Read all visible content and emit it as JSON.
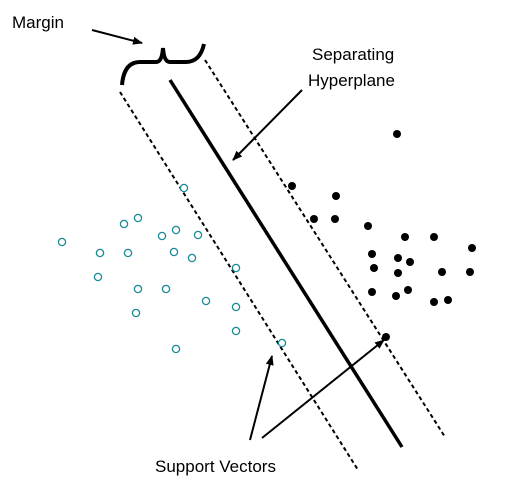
{
  "labels": {
    "margin": "Margin",
    "hyperplane_line1": "Separating",
    "hyperplane_line2": "Hyperplane",
    "support_vectors": "Support Vectors"
  }
}
